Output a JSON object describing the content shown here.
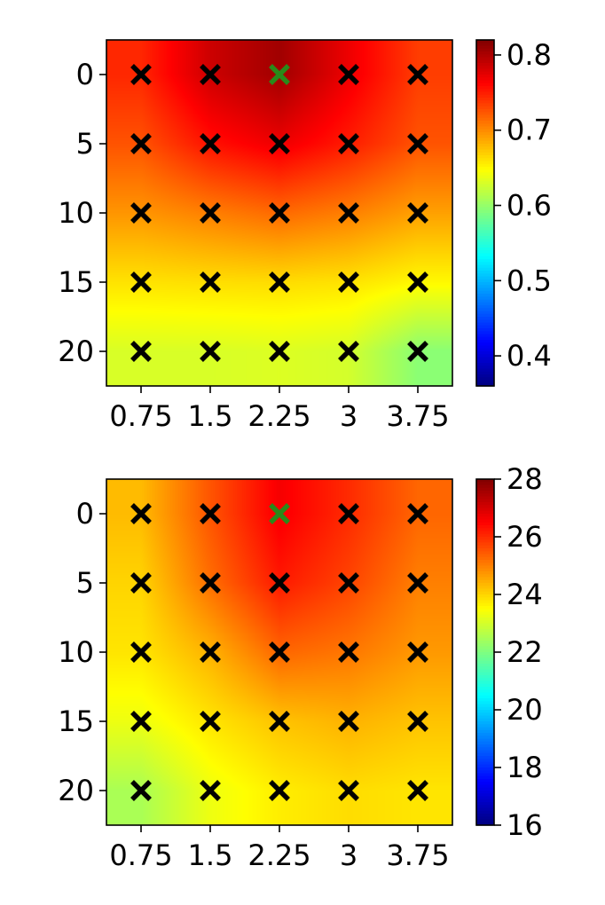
{
  "chart_data": [
    {
      "type": "heatmap",
      "title": "",
      "xlabel": "",
      "ylabel": "",
      "x": [
        0.75,
        1.5,
        2.25,
        3,
        3.75
      ],
      "x_tick_labels": [
        "0.75",
        "1.5",
        "2.25",
        "3",
        "3.75"
      ],
      "y": [
        0,
        5,
        10,
        15,
        20
      ],
      "y_tick_labels": [
        "0",
        "5",
        "10",
        "15",
        "20"
      ],
      "y_inverted": true,
      "colormap": "jet",
      "colorbar_range": [
        0.36,
        0.82
      ],
      "colorbar_ticks": [
        "0.4",
        "0.5",
        "0.6",
        "0.7",
        "0.8"
      ],
      "colorbar_tick_values": [
        0.4,
        0.5,
        0.6,
        0.7,
        0.8
      ],
      "grid": false,
      "values": [
        [
          0.745,
          0.785,
          0.805,
          0.77,
          0.735
        ],
        [
          0.725,
          0.755,
          0.77,
          0.75,
          0.725
        ],
        [
          0.695,
          0.705,
          0.715,
          0.705,
          0.69
        ],
        [
          0.66,
          0.662,
          0.663,
          0.66,
          0.65
        ],
        [
          0.63,
          0.63,
          0.632,
          0.628,
          0.595
        ]
      ],
      "markers": [
        {
          "x": 0.75,
          "y": 0,
          "color": "#000000"
        },
        {
          "x": 1.5,
          "y": 0,
          "color": "#000000"
        },
        {
          "x": 2.25,
          "y": 0,
          "color": "#2a8a1a"
        },
        {
          "x": 3,
          "y": 0,
          "color": "#000000"
        },
        {
          "x": 3.75,
          "y": 0,
          "color": "#000000"
        },
        {
          "x": 0.75,
          "y": 5,
          "color": "#000000"
        },
        {
          "x": 1.5,
          "y": 5,
          "color": "#000000"
        },
        {
          "x": 2.25,
          "y": 5,
          "color": "#000000"
        },
        {
          "x": 3,
          "y": 5,
          "color": "#000000"
        },
        {
          "x": 3.75,
          "y": 5,
          "color": "#000000"
        },
        {
          "x": 0.75,
          "y": 10,
          "color": "#000000"
        },
        {
          "x": 1.5,
          "y": 10,
          "color": "#000000"
        },
        {
          "x": 2.25,
          "y": 10,
          "color": "#000000"
        },
        {
          "x": 3,
          "y": 10,
          "color": "#000000"
        },
        {
          "x": 3.75,
          "y": 10,
          "color": "#000000"
        },
        {
          "x": 0.75,
          "y": 15,
          "color": "#000000"
        },
        {
          "x": 1.5,
          "y": 15,
          "color": "#000000"
        },
        {
          "x": 2.25,
          "y": 15,
          "color": "#000000"
        },
        {
          "x": 3,
          "y": 15,
          "color": "#000000"
        },
        {
          "x": 3.75,
          "y": 15,
          "color": "#000000"
        },
        {
          "x": 0.75,
          "y": 20,
          "color": "#000000"
        },
        {
          "x": 1.5,
          "y": 20,
          "color": "#000000"
        },
        {
          "x": 2.25,
          "y": 20,
          "color": "#000000"
        },
        {
          "x": 3,
          "y": 20,
          "color": "#000000"
        },
        {
          "x": 3.75,
          "y": 20,
          "color": "#000000"
        }
      ]
    },
    {
      "type": "heatmap",
      "title": "",
      "xlabel": "",
      "ylabel": "",
      "x": [
        0.75,
        1.5,
        2.25,
        3,
        3.75
      ],
      "x_tick_labels": [
        "0.75",
        "1.5",
        "2.25",
        "3",
        "3.75"
      ],
      "y": [
        0,
        5,
        10,
        15,
        20
      ],
      "y_tick_labels": [
        "0",
        "5",
        "10",
        "15",
        "20"
      ],
      "y_inverted": true,
      "colormap": "jet",
      "colorbar_range": [
        16,
        28
      ],
      "colorbar_ticks": [
        "16",
        "18",
        "20",
        "22",
        "24",
        "26",
        "28"
      ],
      "colorbar_tick_values": [
        16,
        18,
        20,
        22,
        24,
        26,
        28
      ],
      "grid": false,
      "values": [
        [
          24.3,
          25.5,
          26.6,
          26.0,
          25.3
        ],
        [
          24.0,
          25.2,
          26.2,
          25.7,
          25.0
        ],
        [
          23.8,
          24.4,
          25.3,
          25.1,
          24.7
        ],
        [
          23.3,
          23.8,
          24.2,
          24.4,
          24.2
        ],
        [
          22.5,
          23.3,
          23.7,
          23.9,
          23.8
        ]
      ],
      "markers": [
        {
          "x": 0.75,
          "y": 0,
          "color": "#000000"
        },
        {
          "x": 1.5,
          "y": 0,
          "color": "#000000"
        },
        {
          "x": 2.25,
          "y": 0,
          "color": "#2a8a1a"
        },
        {
          "x": 3,
          "y": 0,
          "color": "#000000"
        },
        {
          "x": 3.75,
          "y": 0,
          "color": "#000000"
        },
        {
          "x": 0.75,
          "y": 5,
          "color": "#000000"
        },
        {
          "x": 1.5,
          "y": 5,
          "color": "#000000"
        },
        {
          "x": 2.25,
          "y": 5,
          "color": "#000000"
        },
        {
          "x": 3,
          "y": 5,
          "color": "#000000"
        },
        {
          "x": 3.75,
          "y": 5,
          "color": "#000000"
        },
        {
          "x": 0.75,
          "y": 10,
          "color": "#000000"
        },
        {
          "x": 1.5,
          "y": 10,
          "color": "#000000"
        },
        {
          "x": 2.25,
          "y": 10,
          "color": "#000000"
        },
        {
          "x": 3,
          "y": 10,
          "color": "#000000"
        },
        {
          "x": 3.75,
          "y": 10,
          "color": "#000000"
        },
        {
          "x": 0.75,
          "y": 15,
          "color": "#000000"
        },
        {
          "x": 1.5,
          "y": 15,
          "color": "#000000"
        },
        {
          "x": 2.25,
          "y": 15,
          "color": "#000000"
        },
        {
          "x": 3,
          "y": 15,
          "color": "#000000"
        },
        {
          "x": 3.75,
          "y": 15,
          "color": "#000000"
        },
        {
          "x": 0.75,
          "y": 20,
          "color": "#000000"
        },
        {
          "x": 1.5,
          "y": 20,
          "color": "#000000"
        },
        {
          "x": 2.25,
          "y": 20,
          "color": "#000000"
        },
        {
          "x": 3,
          "y": 20,
          "color": "#000000"
        },
        {
          "x": 3.75,
          "y": 20,
          "color": "#000000"
        }
      ]
    }
  ]
}
